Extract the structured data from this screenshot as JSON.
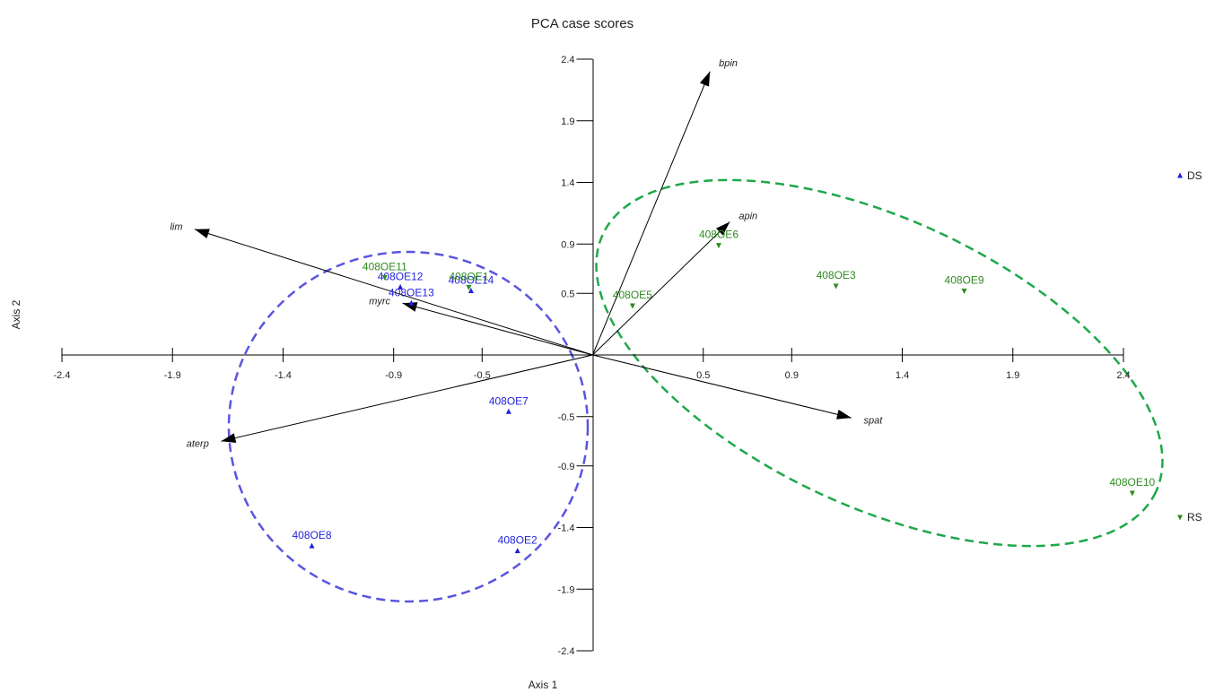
{
  "chart_data": {
    "type": "scatter",
    "title": "PCA case scores",
    "xlabel": "Axis 1",
    "ylabel": "Axis 2",
    "xlim": [
      -2.4,
      2.4
    ],
    "ylim": [
      -2.4,
      2.4
    ],
    "x_ticks": [
      "-2.4",
      "-1.9",
      "-1.4",
      "-0.9",
      "-0.5",
      "0.5",
      "0.9",
      "1.4",
      "1.9",
      "2.4"
    ],
    "x_tick_values": [
      -2.4,
      -1.9,
      -1.4,
      -0.9,
      -0.5,
      0.5,
      0.9,
      1.4,
      1.9,
      2.4
    ],
    "y_ticks": [
      "2.4",
      "1.9",
      "1.4",
      "0.9",
      "0.5",
      "-0.5",
      "-0.9",
      "-1.4",
      "-1.9",
      "-2.4"
    ],
    "y_tick_values": [
      2.4,
      1.9,
      1.4,
      0.9,
      0.5,
      -0.5,
      -0.9,
      -1.4,
      -1.9,
      -2.4
    ],
    "grid": false,
    "legend_position": "right",
    "series": [
      {
        "name": "DS",
        "color": "#1f1fe0",
        "marker": "triangle-up",
        "points": [
          {
            "label": "408OE7",
            "x": -0.38,
            "y": -0.46
          },
          {
            "label": "408OE8",
            "x": -1.27,
            "y": -1.55
          },
          {
            "label": "408OE2",
            "x": -0.34,
            "y": -1.59
          },
          {
            "label": "408OE12",
            "x": -0.87,
            "y": 0.55
          },
          {
            "label": "408OE13",
            "x": -0.82,
            "y": 0.42
          },
          {
            "label": "408OE14",
            "x": -0.55,
            "y": 0.52
          }
        ]
      },
      {
        "name": "RS",
        "color": "#2e8b1f",
        "marker": "triangle-down",
        "points": [
          {
            "label": "408OE11",
            "x": -0.94,
            "y": 0.63
          },
          {
            "label": "408OE6",
            "x": 0.57,
            "y": 0.89
          },
          {
            "label": "408OE5",
            "x": 0.18,
            "y": 0.4
          },
          {
            "label": "408OE3",
            "x": 1.1,
            "y": 0.56
          },
          {
            "label": "408OE9",
            "x": 1.68,
            "y": 0.52
          },
          {
            "label": "408OE10",
            "x": 2.44,
            "y": -1.12
          },
          {
            "label": "408OE1",
            "x": -0.56,
            "y": 0.55
          }
        ]
      }
    ],
    "vectors": [
      {
        "label": "bpin",
        "x": 0.53,
        "y": 2.3
      },
      {
        "label": "apin",
        "x": 0.62,
        "y": 1.08
      },
      {
        "label": "lim",
        "x": -1.8,
        "y": 1.02
      },
      {
        "label": "myrc",
        "x": -0.86,
        "y": 0.42
      },
      {
        "label": "aterp",
        "x": -1.68,
        "y": -0.7
      },
      {
        "label": "spat",
        "x": 1.17,
        "y": -0.51
      }
    ]
  }
}
